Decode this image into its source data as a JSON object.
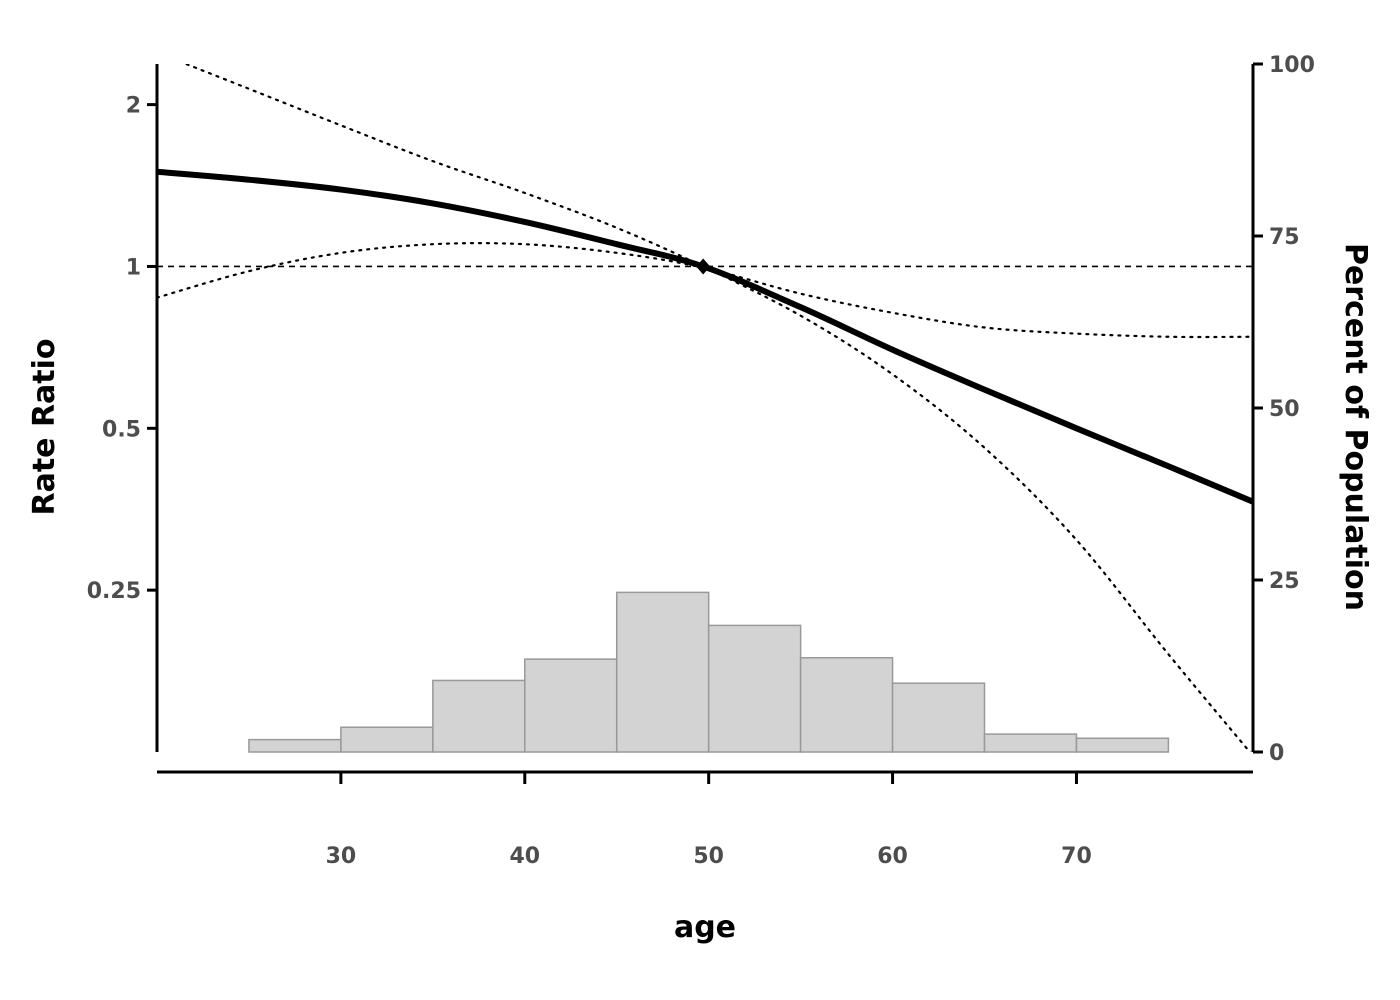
{
  "chart_data": {
    "type": "line",
    "xlabel": "age",
    "ylabel": "Rate Ratio",
    "y2label": "Percent of Population",
    "xlim": [
      20,
      79.6
    ],
    "xticks": [
      30,
      40,
      50,
      60,
      70
    ],
    "ylim": [
      0.125,
      2.38
    ],
    "yscale": "log2",
    "yticks": [
      0.25,
      0.5,
      1,
      2
    ],
    "y2lim": [
      0,
      100
    ],
    "y2ticks": [
      0,
      25,
      50,
      75,
      100
    ],
    "reference_line": {
      "y": 1,
      "style": "dashed"
    },
    "reference_point": {
      "x": 49.7,
      "y": 1
    },
    "series": [
      {
        "style": "solid",
        "x": [
          20,
          25,
          30,
          35,
          40,
          45,
          49.7,
          55,
          60,
          65,
          70,
          75,
          79.6
        ],
        "y": [
          1.5,
          1.45,
          1.39,
          1.31,
          1.21,
          1.1,
          1.0,
          0.84,
          0.7,
          0.59,
          0.5,
          0.425,
          0.365
        ]
      },
      {
        "style": "dotted",
        "x": [
          20,
          25,
          30,
          35,
          40,
          45,
          49.7,
          55,
          60,
          65,
          70,
          75,
          79.6
        ],
        "y": [
          2.5,
          2.14,
          1.83,
          1.57,
          1.37,
          1.18,
          1.0,
          0.81,
          0.63,
          0.46,
          0.31,
          0.19,
          0.123
        ]
      },
      {
        "style": "dotted",
        "x": [
          20,
          25,
          30,
          35,
          40,
          45,
          49.7,
          55,
          60,
          65,
          70,
          75,
          79.6
        ],
        "y": [
          0.875,
          0.98,
          1.06,
          1.1,
          1.1,
          1.06,
          0.995,
          0.89,
          0.82,
          0.77,
          0.75,
          0.74,
          0.74
        ]
      }
    ],
    "histogram": {
      "color": "#d3d3d3",
      "edge_color": "#999999",
      "bins": [
        {
          "x0": 25,
          "x1": 30,
          "percent": 1.8
        },
        {
          "x0": 30,
          "x1": 35,
          "percent": 3.6
        },
        {
          "x0": 35,
          "x1": 40,
          "percent": 10.4
        },
        {
          "x0": 40,
          "x1": 45,
          "percent": 13.5
        },
        {
          "x0": 45,
          "x1": 50,
          "percent": 23.2
        },
        {
          "x0": 50,
          "x1": 55,
          "percent": 18.4
        },
        {
          "x0": 55,
          "x1": 60,
          "percent": 13.7
        },
        {
          "x0": 60,
          "x1": 65,
          "percent": 10.0
        },
        {
          "x0": 65,
          "x1": 70,
          "percent": 2.6
        },
        {
          "x0": 70,
          "x1": 75,
          "percent": 2.0
        }
      ]
    }
  }
}
